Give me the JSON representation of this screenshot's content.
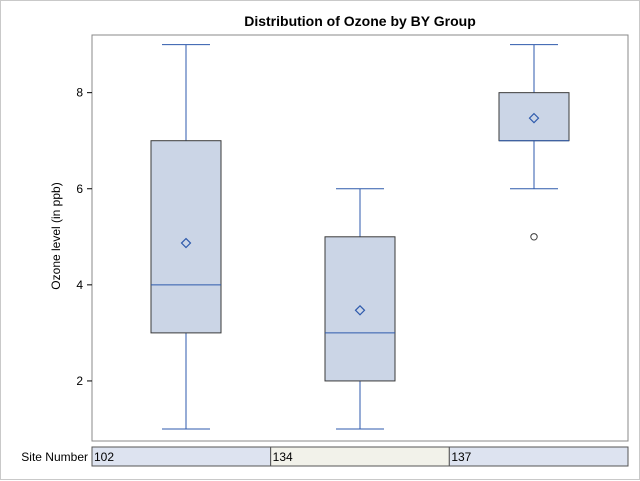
{
  "chart_data": {
    "type": "box",
    "title": "Distribution of Ozone by BY Group",
    "xlabel": "",
    "ylabel": "Ozone level (in ppb)",
    "ylim": [
      0.75,
      9.2
    ],
    "yticks": [
      2,
      4,
      6,
      8
    ],
    "group_axis_label": "Site Number",
    "groups": [
      {
        "name": "102",
        "min": 1,
        "q1": 3,
        "median": 4,
        "q3": 7,
        "max": 9,
        "mean": 4.87,
        "outliers": []
      },
      {
        "name": "134",
        "min": 1,
        "q1": 2,
        "median": 3,
        "q3": 5,
        "max": 6,
        "mean": 3.47,
        "outliers": []
      },
      {
        "name": "137",
        "min": 6,
        "q1": 7,
        "median": 7,
        "q3": 8,
        "max": 9,
        "mean": 7.47,
        "outliers": [
          5
        ]
      }
    ],
    "colors": {
      "box_fill": "#cbd5e6",
      "box_edge": "#3a3a3a",
      "whisker": "#2e5aac",
      "median": "#2e5aac",
      "mean_marker": "#2e5aac",
      "outlier": "#3a3a3a",
      "group_cell_a": "#dde3f0",
      "group_cell_b": "#f2f2ea"
    }
  }
}
